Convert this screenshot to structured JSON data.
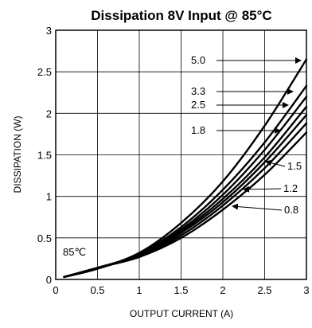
{
  "chart_data": {
    "type": "line",
    "title": "Dissipation 8V Input @ 85°C",
    "xlabel": "OUTPUT CURRENT (A)",
    "ylabel": "DISSIPATION (W)",
    "xlim": [
      0,
      3
    ],
    "ylim": [
      0,
      3
    ],
    "xticks": [
      "0",
      "0.5",
      "1",
      "1.5",
      "2",
      "2.5",
      "3"
    ],
    "yticks": [
      "0",
      "0.5",
      "1",
      "1.5",
      "2",
      "2.5",
      "3"
    ],
    "grid": true,
    "annotation": "85℃",
    "series": [
      {
        "name": "5.0",
        "x": [
          0.1,
          0.5,
          1.0,
          1.5,
          2.0,
          2.5,
          3.0
        ],
        "y": [
          0.03,
          0.13,
          0.32,
          0.68,
          1.18,
          1.85,
          2.65
        ]
      },
      {
        "name": "3.3",
        "x": [
          0.1,
          0.5,
          1.0,
          1.5,
          2.0,
          2.5,
          3.0
        ],
        "y": [
          0.03,
          0.13,
          0.31,
          0.63,
          1.08,
          1.65,
          2.33
        ]
      },
      {
        "name": "2.5",
        "x": [
          0.1,
          0.5,
          1.0,
          1.5,
          2.0,
          2.5,
          3.0
        ],
        "y": [
          0.03,
          0.13,
          0.3,
          0.6,
          1.02,
          1.56,
          2.2
        ]
      },
      {
        "name": "1.8",
        "x": [
          0.1,
          0.5,
          1.0,
          1.5,
          2.0,
          2.5,
          3.0
        ],
        "y": [
          0.03,
          0.14,
          0.3,
          0.58,
          0.97,
          1.47,
          2.08
        ]
      },
      {
        "name": "1.5",
        "x": [
          0.1,
          0.5,
          1.0,
          1.5,
          2.0,
          2.5,
          3.0
        ],
        "y": [
          0.03,
          0.14,
          0.29,
          0.56,
          0.93,
          1.41,
          1.98
        ]
      },
      {
        "name": "1.2",
        "x": [
          0.1,
          0.5,
          1.0,
          1.5,
          2.0,
          2.5,
          3.0
        ],
        "y": [
          0.03,
          0.14,
          0.28,
          0.53,
          0.89,
          1.34,
          1.88
        ]
      },
      {
        "name": "0.8",
        "x": [
          0.1,
          0.5,
          1.0,
          1.5,
          2.0,
          2.5,
          3.0
        ],
        "y": [
          0.03,
          0.14,
          0.27,
          0.5,
          0.84,
          1.26,
          1.77
        ]
      }
    ]
  }
}
